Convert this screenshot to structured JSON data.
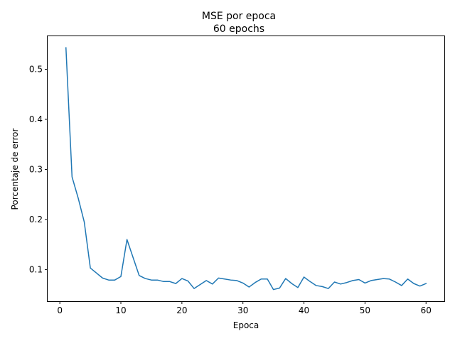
{
  "chart_data": {
    "type": "line",
    "title": "MSE por epoca",
    "subtitle": "60 epochs",
    "xlabel": "Epoca",
    "ylabel": "Porcentaje de error",
    "xlim": [
      -2.0,
      63.0
    ],
    "ylim": [
      0.0367,
      0.566
    ],
    "xticks": [
      0,
      10,
      20,
      30,
      40,
      50,
      60
    ],
    "yticks": [
      0.1,
      0.2,
      0.3,
      0.4,
      0.5
    ],
    "xtick_labels": [
      "0",
      "10",
      "20",
      "30",
      "40",
      "50",
      "60"
    ],
    "ytick_labels": [
      "0.1",
      "0.2",
      "0.3",
      "0.4",
      "0.5"
    ],
    "grid": false,
    "line_color": "#1f77b4",
    "series": [
      {
        "x": [
          1,
          2,
          3,
          4,
          5,
          6,
          7,
          8,
          9,
          10,
          11,
          12,
          13,
          14,
          15,
          16,
          17,
          18,
          19,
          20,
          21,
          22,
          23,
          24,
          25,
          26,
          27,
          28,
          29,
          30,
          31,
          32,
          33,
          34,
          35,
          36,
          37,
          38,
          39,
          40,
          41,
          42,
          43,
          44,
          45,
          46,
          47,
          48,
          49,
          50,
          51,
          52,
          53,
          54,
          55,
          56,
          57,
          58,
          59,
          60
        ],
        "values": [
          0.543,
          0.285,
          0.243,
          0.195,
          0.103,
          0.093,
          0.083,
          0.079,
          0.079,
          0.086,
          0.16,
          0.124,
          0.088,
          0.082,
          0.079,
          0.079,
          0.076,
          0.076,
          0.072,
          0.082,
          0.077,
          0.062,
          0.07,
          0.078,
          0.071,
          0.083,
          0.081,
          0.079,
          0.078,
          0.073,
          0.065,
          0.074,
          0.081,
          0.081,
          0.06,
          0.063,
          0.082,
          0.072,
          0.064,
          0.085,
          0.076,
          0.068,
          0.066,
          0.062,
          0.075,
          0.071,
          0.074,
          0.078,
          0.08,
          0.073,
          0.078,
          0.08,
          0.082,
          0.081,
          0.075,
          0.068,
          0.081,
          0.072,
          0.067,
          0.072
        ]
      }
    ]
  }
}
